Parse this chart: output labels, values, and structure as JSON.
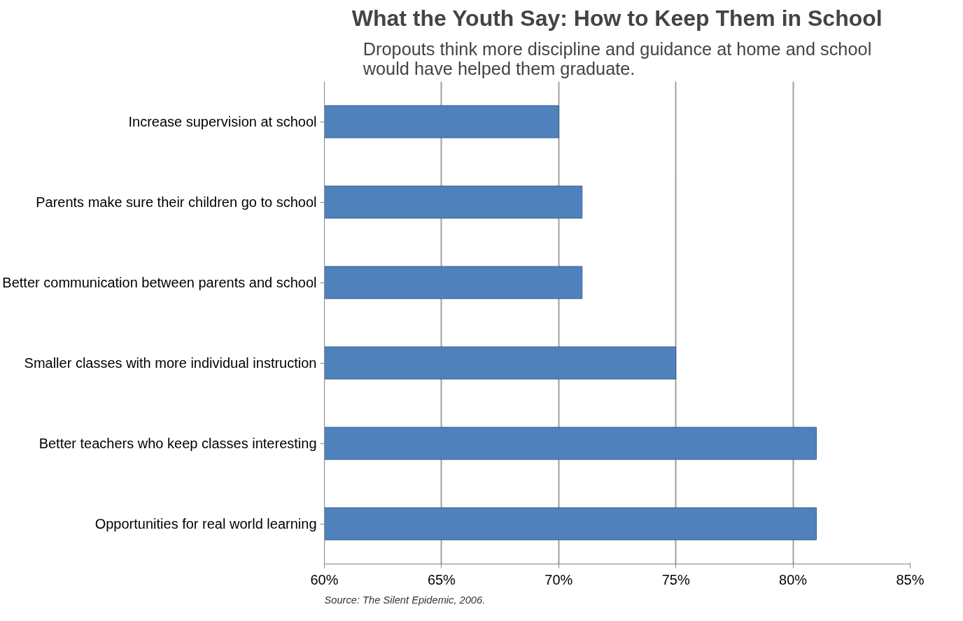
{
  "chart_data": {
    "type": "bar",
    "orientation": "horizontal",
    "title": "What the Youth Say: How to Keep Them in School",
    "subtitle": "Dropouts think more discipline and guidance at home and school\nwould have helped them graduate.",
    "categories": [
      "Increase supervision at school",
      "Parents make sure their children go to school",
      "Better communication between parents and school",
      "Smaller classes with more individual instruction",
      "Better teachers who keep classes interesting",
      "Opportunities for real world learning"
    ],
    "values": [
      70,
      71,
      71,
      75,
      81,
      81
    ],
    "color": "#4f81bd",
    "xlim": [
      60,
      85
    ],
    "xticks": [
      {
        "value": 60,
        "label": "60%"
      },
      {
        "value": 65,
        "label": "65%"
      },
      {
        "value": 70,
        "label": "70%"
      },
      {
        "value": 75,
        "label": "75%"
      },
      {
        "value": 80,
        "label": "80%"
      },
      {
        "value": 85,
        "label": "85%"
      }
    ],
    "grid": "x",
    "annotations": [
      "Source: The Silent Epidemic, 2006."
    ]
  }
}
